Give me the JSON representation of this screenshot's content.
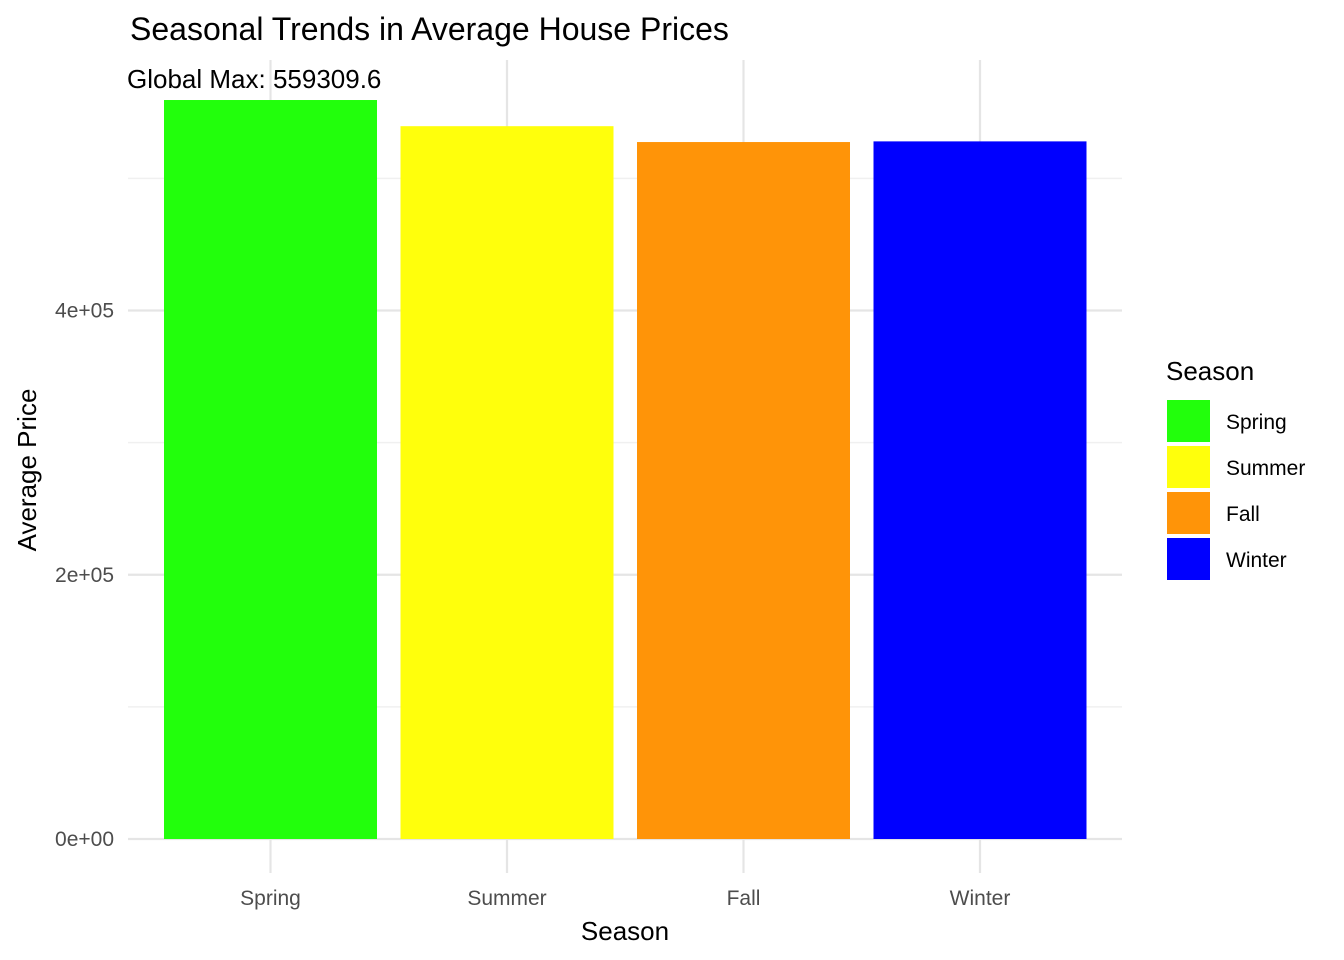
{
  "chart_data": {
    "type": "bar",
    "title": "Seasonal Trends in Average House Prices",
    "annotation": "Global Max: 559309.6",
    "xlabel": "Season",
    "ylabel": "Average Price",
    "categories": [
      "Spring",
      "Summer",
      "Fall",
      "Winter"
    ],
    "values": [
      559309.6,
      539500,
      527500,
      528000
    ],
    "colors": [
      "#22ff0c",
      "#ffff0c",
      "#ff9408",
      "#0000ff"
    ],
    "ylim": [
      0,
      600000
    ],
    "y_ticks": [
      0,
      200000,
      400000
    ],
    "y_tick_labels": [
      "0e+00",
      "2e+05",
      "4e+05"
    ],
    "y_minor_ticks": [
      100000,
      300000,
      500000
    ],
    "grid": true,
    "legend": {
      "title": "Season",
      "position": "right",
      "entries": [
        "Spring",
        "Summer",
        "Fall",
        "Winter"
      ]
    }
  }
}
